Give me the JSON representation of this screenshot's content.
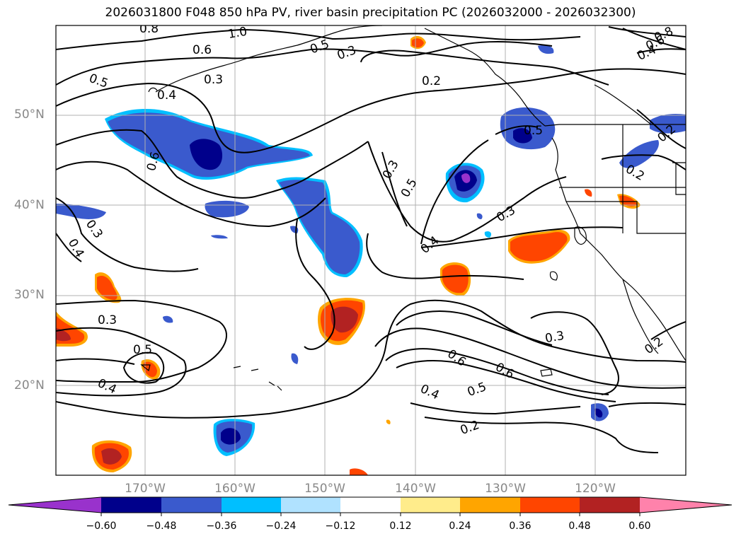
{
  "title": "2026031800 F048 850 hPa PV, river basin precipitation PC (2026032000 - 2026032300)",
  "lat_labels": [
    "50°N",
    "40°N",
    "30°N",
    "20°N"
  ],
  "lon_labels": [
    "170°W",
    "160°W",
    "150°W",
    "140°W",
    "130°W",
    "120°W"
  ],
  "contour_labels": [
    "0.8",
    "1.0",
    "0.6",
    "0.5",
    "0.3",
    "0.3",
    "0.5",
    "0.4",
    "0.2",
    "0.6",
    "0.3",
    "0.5",
    "0.4",
    "0.3",
    "0.8",
    "0.6",
    "0.4",
    "0.5",
    "0.2",
    "0.2",
    "0.3",
    "0.4",
    "0.3",
    "0.5",
    "0.4",
    "0.6",
    "0.6",
    "0.5",
    "0.4",
    "0.3",
    "0.2",
    "0.2"
  ],
  "colorbar": {
    "ticks": [
      "−0.60",
      "−0.48",
      "−0.36",
      "−0.24",
      "−0.12",
      "0.12",
      "0.24",
      "0.36",
      "0.48",
      "0.60"
    ],
    "colors": [
      "#9932cc",
      "#00008b",
      "#3a5acd",
      "#00bfff",
      "#b0e2ff",
      "#ffffff",
      "#ffec8b",
      "#ffa500",
      "#ff4500",
      "#b22222",
      "#ff82ab"
    ]
  }
}
